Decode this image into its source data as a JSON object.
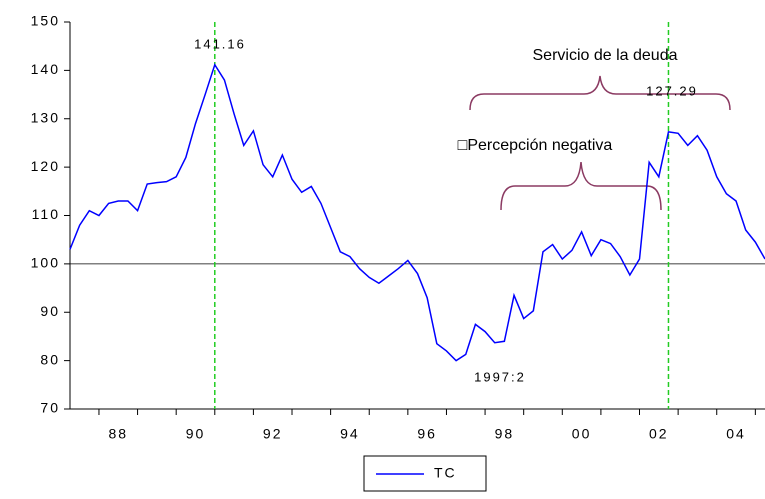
{
  "chart_data": {
    "type": "line",
    "x": [
      1987.25,
      1987.5,
      1987.75,
      1988,
      1988.25,
      1988.5,
      1988.75,
      1989,
      1989.25,
      1989.5,
      1989.75,
      1990,
      1990.25,
      1990.5,
      1990.75,
      1991,
      1991.25,
      1991.5,
      1991.75,
      1992,
      1992.25,
      1992.5,
      1992.75,
      1993,
      1993.25,
      1993.5,
      1993.75,
      1994,
      1994.25,
      1994.5,
      1994.75,
      1995,
      1995.25,
      1995.5,
      1995.75,
      1996,
      1996.25,
      1996.5,
      1996.75,
      1997,
      1997.25,
      1997.5,
      1997.75,
      1998,
      1998.25,
      1998.5,
      1998.75,
      1999,
      1999.25,
      1999.5,
      1999.75,
      2000,
      2000.25,
      2000.5,
      2000.75,
      2001,
      2001.25,
      2001.5,
      2001.75,
      2002,
      2002.25,
      2002.5,
      2002.75,
      2003,
      2003.25,
      2003.5,
      2003.75,
      2004,
      2004.25,
      2004.5,
      2004.75,
      2005,
      2005.25
    ],
    "series": [
      {
        "name": "TC",
        "color": "#0000ff",
        "values": [
          103,
          108,
          111,
          110,
          112.5,
          113,
          113,
          111,
          116.5,
          116.8,
          117,
          118,
          122,
          129,
          135,
          141.16,
          138,
          131,
          124.5,
          127.5,
          120.5,
          118,
          122.5,
          117.5,
          114.8,
          116,
          112.5,
          107.5,
          102.5,
          101.5,
          99,
          97.2,
          96,
          97.5,
          99,
          100.7,
          98,
          93,
          83.5,
          82,
          80,
          81.3,
          87.5,
          86,
          83.7,
          84,
          93.5,
          88.7,
          90.3,
          102.5,
          104,
          101,
          102.8,
          106.6,
          101.7,
          105,
          104.2,
          101.5,
          97.7,
          101,
          121,
          118,
          127.29,
          127,
          124.5,
          126.5,
          123.5,
          118,
          114.5,
          113,
          107,
          104.5,
          101
        ]
      }
    ],
    "xlim": [
      1987.25,
      2005.25
    ],
    "xticks": [
      {
        "value": 1988.5,
        "label": "88"
      },
      {
        "value": 1990.5,
        "label": "90"
      },
      {
        "value": 1992.5,
        "label": "92"
      },
      {
        "value": 1994.5,
        "label": "94"
      },
      {
        "value": 1996.5,
        "label": "96"
      },
      {
        "value": 1998.5,
        "label": "98"
      },
      {
        "value": 2000.5,
        "label": "00"
      },
      {
        "value": 2002.5,
        "label": "02"
      },
      {
        "value": 2004.5,
        "label": "04"
      }
    ],
    "ylim": [
      70,
      150
    ],
    "yticks": [
      70,
      80,
      90,
      100,
      110,
      120,
      130,
      140,
      150
    ],
    "hline": 100,
    "vlines": [
      1991,
      2002.75
    ],
    "vline_color": "#22cc22",
    "annotations": [
      "141.16",
      "127.29",
      "1997:2",
      "Servicio de la deuda",
      "□Percepción negativa"
    ]
  }
}
